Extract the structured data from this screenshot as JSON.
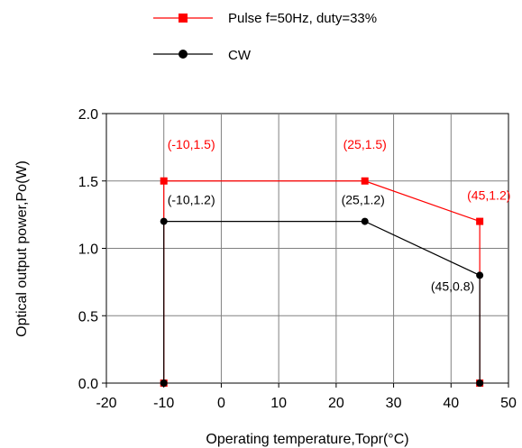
{
  "chart_data": {
    "type": "line",
    "xlabel": "Operating temperature,Topr(°C)",
    "ylabel": "Optical output power,Po(W)",
    "xlim": [
      -20,
      50
    ],
    "ylim": [
      0,
      2.0
    ],
    "x_ticks": [
      "-20",
      "-10",
      "0",
      "10",
      "20",
      "30",
      "40",
      "50"
    ],
    "y_ticks": [
      "0.0",
      "0.5",
      "1.0",
      "1.5",
      "2.0"
    ],
    "grid": true,
    "legend_position": "top-center",
    "series": [
      {
        "name": "Pulse f=50Hz, duty=33%",
        "color": "#ff0000",
        "marker": "square",
        "points": [
          [
            -10,
            0.0
          ],
          [
            -10,
            1.5
          ],
          [
            25,
            1.5
          ],
          [
            45,
            1.2
          ],
          [
            45,
            0.0
          ]
        ],
        "labels": [
          "(-10,1.5)",
          "(25,1.5)",
          "(45,1.2)"
        ]
      },
      {
        "name": "CW",
        "color": "#000000",
        "marker": "circle",
        "points": [
          [
            -10,
            0.0
          ],
          [
            -10,
            1.2
          ],
          [
            25,
            1.2
          ],
          [
            45,
            0.8
          ],
          [
            45,
            0.0
          ]
        ],
        "labels": [
          "(-10,1.2)",
          "(25,1.2)",
          "(45,0.8)"
        ]
      }
    ]
  }
}
